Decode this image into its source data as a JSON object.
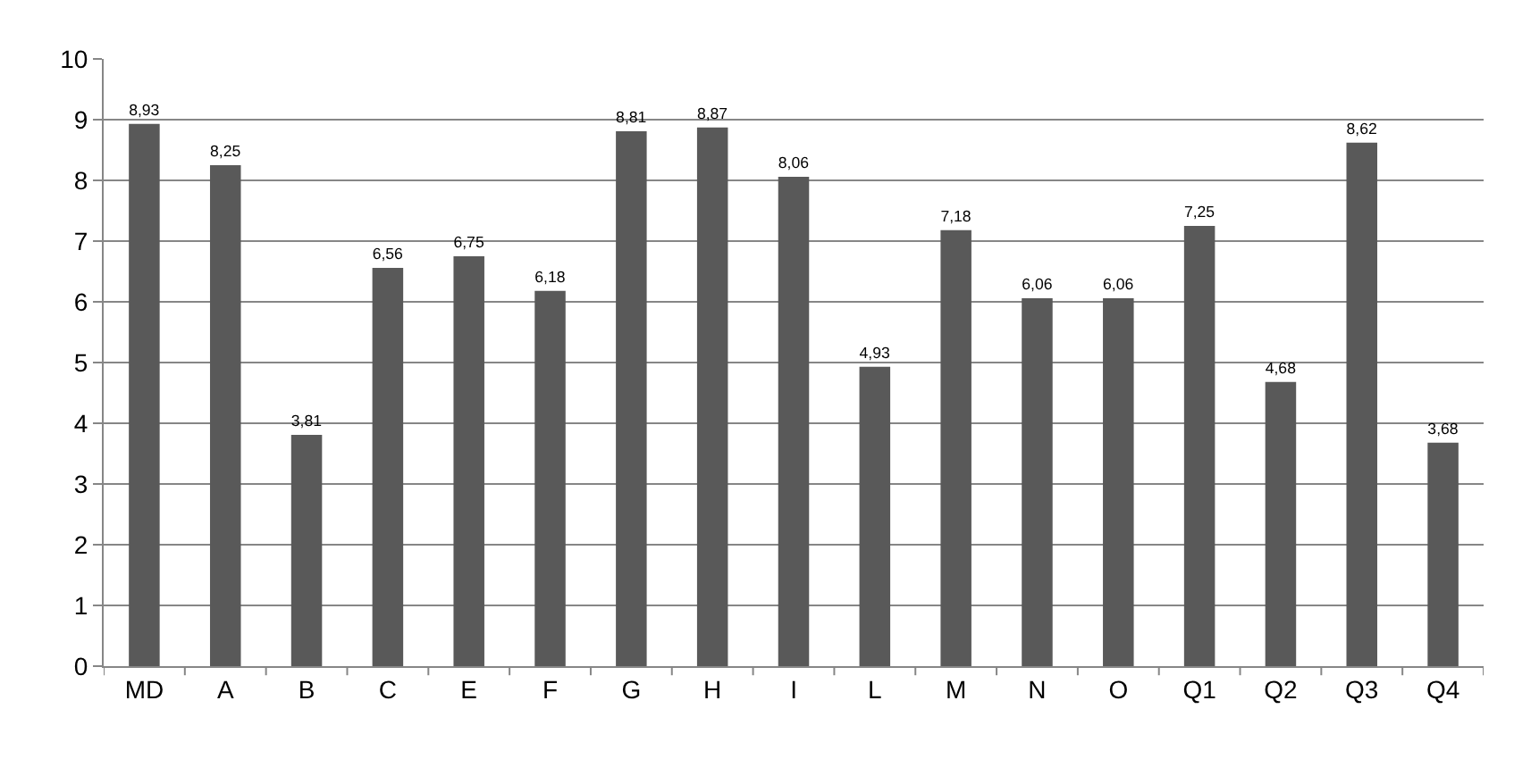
{
  "chart_data": {
    "type": "bar",
    "categories": [
      "MD",
      "A",
      "B",
      "C",
      "E",
      "F",
      "G",
      "H",
      "I",
      "L",
      "M",
      "N",
      "O",
      "Q1",
      "Q2",
      "Q3",
      "Q4"
    ],
    "values": [
      8.93,
      8.25,
      3.81,
      6.56,
      6.75,
      6.18,
      8.81,
      8.87,
      8.06,
      4.93,
      7.18,
      6.06,
      6.06,
      7.25,
      4.68,
      8.62,
      3.68
    ],
    "value_labels": [
      "8,93",
      "8,25",
      "3,81",
      "6,56",
      "6,75",
      "6,18",
      "8,81",
      "8,87",
      "8,06",
      "4,93",
      "7,18",
      "6,06",
      "6,06",
      "7,25",
      "4,68",
      "8,62",
      "3,68"
    ],
    "color": "#595959",
    "ylim": [
      0,
      10
    ],
    "yticks": [
      0,
      1,
      2,
      3,
      4,
      5,
      6,
      7,
      8,
      9,
      10
    ],
    "grid": "y",
    "legend": false
  }
}
